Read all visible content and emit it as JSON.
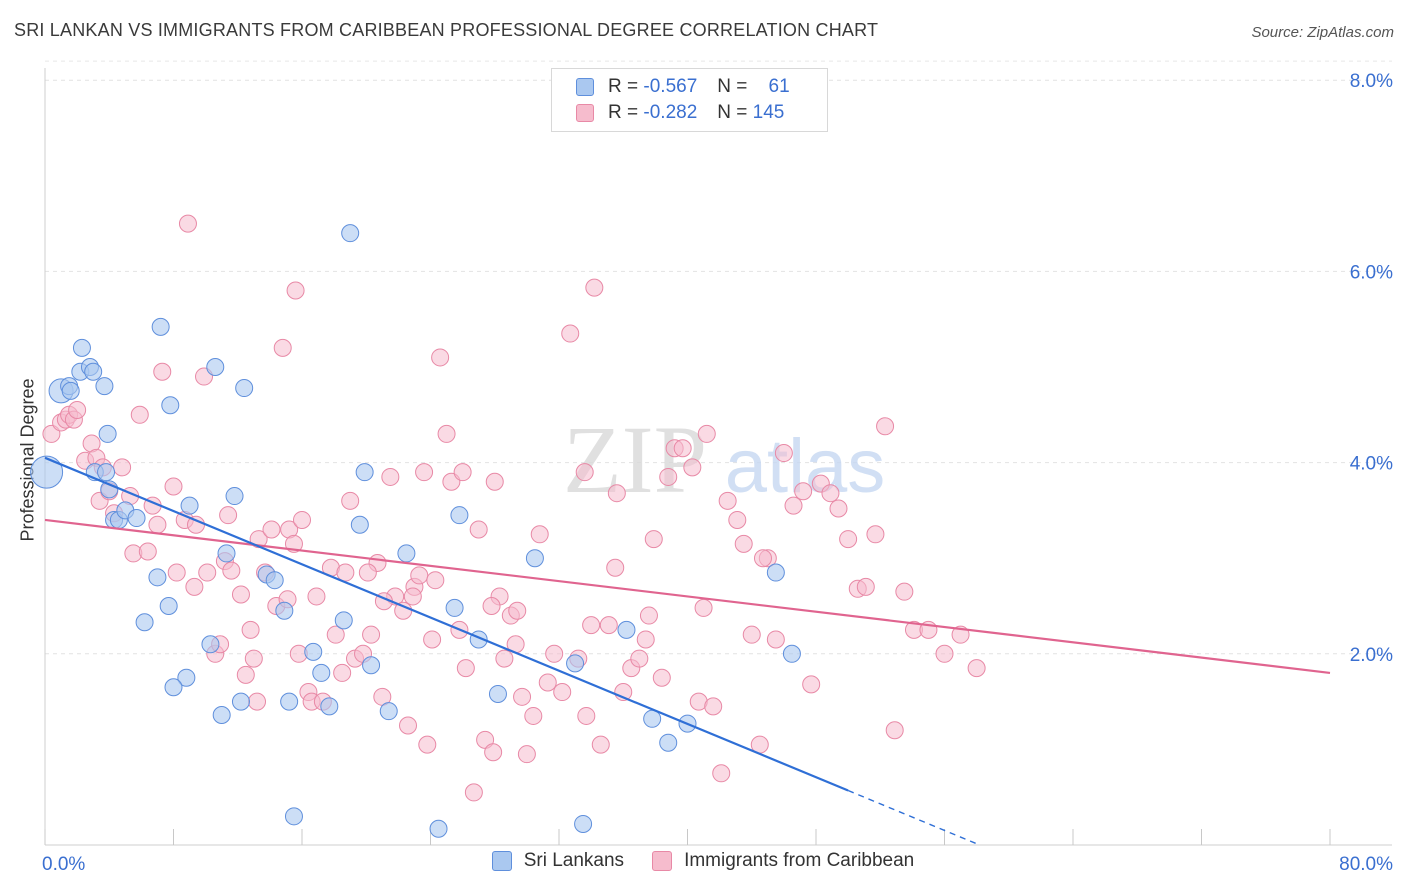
{
  "title": "SRI LANKAN VS IMMIGRANTS FROM CARIBBEAN PROFESSIONAL DEGREE CORRELATION CHART",
  "source": "Source: ZipAtlas.com",
  "watermark": {
    "zip": "ZIP",
    "atlas": "atlas"
  },
  "legend_top": [
    {
      "r_label": "R =",
      "r_value": "-0.567",
      "n_label": "N =",
      "n_value": "61"
    },
    {
      "r_label": "R =",
      "r_value": "-0.282",
      "n_label": "N =",
      "n_value": "145"
    }
  ],
  "chart_data": {
    "type": "scatter",
    "title": "SRI LANKAN VS IMMIGRANTS FROM CARIBBEAN PROFESSIONAL DEGREE CORRELATION CHART",
    "ylabel": "Professional Degree",
    "xlim": [
      0,
      80
    ],
    "ylim": [
      0,
      8.2
    ],
    "x_tick_labels": [
      "0.0%",
      "80.0%"
    ],
    "y_ticks": [
      2,
      4,
      6,
      8
    ],
    "y_tick_labels": [
      "2.0%",
      "4.0%",
      "6.0%",
      "8.0%"
    ],
    "grid": true,
    "legend_position": "bottom",
    "colors": {
      "sri_fill": "#aac8f0",
      "sri_stroke": "#5f8fdc",
      "sri_line": "#2f6fd6",
      "car_fill": "#f6bccd",
      "car_stroke": "#e889a6",
      "car_line": "#e0648f",
      "axis_label": "#3a6fd0"
    },
    "series": [
      {
        "name": "Sri Lankans",
        "trend": {
          "x1": 0,
          "y1": 4.05,
          "x2": 50,
          "y2": 0.57,
          "dash_to_x": 58
        },
        "points": [
          [
            1.0,
            4.75
          ],
          [
            1.5,
            4.8
          ],
          [
            1.6,
            4.75
          ],
          [
            2.2,
            4.95
          ],
          [
            2.3,
            5.2
          ],
          [
            2.8,
            5.0
          ],
          [
            3.0,
            4.95
          ],
          [
            3.7,
            4.8
          ],
          [
            3.9,
            4.3
          ],
          [
            3.1,
            3.9
          ],
          [
            3.8,
            3.9
          ],
          [
            4.0,
            3.72
          ],
          [
            4.3,
            3.4
          ],
          [
            4.6,
            3.4
          ],
          [
            5.0,
            3.5
          ],
          [
            5.7,
            3.42
          ],
          [
            7.2,
            5.42
          ],
          [
            7.8,
            4.6
          ],
          [
            9.0,
            3.55
          ],
          [
            10.6,
            5.0
          ],
          [
            11.3,
            3.05
          ],
          [
            11.8,
            3.65
          ],
          [
            12.4,
            4.78
          ],
          [
            13.8,
            2.83
          ],
          [
            14.3,
            2.77
          ],
          [
            14.9,
            2.45
          ],
          [
            15.2,
            1.5
          ],
          [
            16.7,
            2.02
          ],
          [
            17.2,
            1.8
          ],
          [
            17.7,
            1.45
          ],
          [
            18.6,
            2.35
          ],
          [
            19.6,
            3.35
          ],
          [
            19.9,
            3.9
          ],
          [
            20.3,
            1.88
          ],
          [
            21.4,
            1.4
          ],
          [
            7.0,
            2.8
          ],
          [
            7.7,
            2.5
          ],
          [
            6.2,
            2.33
          ],
          [
            8.8,
            1.75
          ],
          [
            10.3,
            2.1
          ],
          [
            11.0,
            1.36
          ],
          [
            12.2,
            1.5
          ],
          [
            8.0,
            1.65
          ],
          [
            19.0,
            6.4
          ],
          [
            22.5,
            3.05
          ],
          [
            25.5,
            2.48
          ],
          [
            25.8,
            3.45
          ],
          [
            27.0,
            2.15
          ],
          [
            28.2,
            1.58
          ],
          [
            30.5,
            3.0
          ],
          [
            33.0,
            1.9
          ],
          [
            36.2,
            2.25
          ],
          [
            37.8,
            1.32
          ],
          [
            38.8,
            1.07
          ],
          [
            40.0,
            1.27
          ],
          [
            45.5,
            2.85
          ],
          [
            46.5,
            2.0
          ],
          [
            15.5,
            0.3
          ],
          [
            24.5,
            0.17
          ],
          [
            33.5,
            0.22
          ],
          [
            0.1,
            3.9
          ]
        ]
      },
      {
        "name": "Immigrants from Caribbean",
        "trend": {
          "x1": 0,
          "y1": 3.4,
          "x2": 80,
          "y2": 1.8
        },
        "points": [
          [
            0.4,
            4.3
          ],
          [
            1.0,
            4.42
          ],
          [
            1.3,
            4.45
          ],
          [
            1.5,
            4.5
          ],
          [
            1.8,
            4.45
          ],
          [
            2.0,
            4.55
          ],
          [
            2.5,
            4.02
          ],
          [
            2.9,
            4.2
          ],
          [
            3.2,
            4.05
          ],
          [
            3.4,
            3.6
          ],
          [
            3.6,
            3.95
          ],
          [
            4.0,
            3.7
          ],
          [
            4.3,
            3.47
          ],
          [
            4.8,
            3.95
          ],
          [
            5.3,
            3.65
          ],
          [
            5.5,
            3.05
          ],
          [
            5.9,
            4.5
          ],
          [
            6.4,
            3.07
          ],
          [
            6.7,
            3.55
          ],
          [
            7.0,
            3.35
          ],
          [
            7.3,
            4.95
          ],
          [
            8.0,
            3.75
          ],
          [
            8.2,
            2.85
          ],
          [
            8.7,
            3.4
          ],
          [
            9.4,
            3.35
          ],
          [
            9.9,
            4.9
          ],
          [
            10.1,
            2.85
          ],
          [
            10.6,
            2.0
          ],
          [
            10.9,
            2.1
          ],
          [
            11.2,
            2.97
          ],
          [
            11.6,
            2.87
          ],
          [
            12.2,
            2.62
          ],
          [
            12.5,
            1.78
          ],
          [
            13.0,
            1.95
          ],
          [
            13.3,
            3.2
          ],
          [
            13.7,
            2.85
          ],
          [
            14.4,
            2.5
          ],
          [
            14.8,
            5.2
          ],
          [
            15.2,
            3.3
          ],
          [
            15.5,
            3.15
          ],
          [
            15.8,
            2.0
          ],
          [
            16.4,
            1.6
          ],
          [
            16.6,
            1.5
          ],
          [
            16.9,
            2.6
          ],
          [
            17.3,
            1.5
          ],
          [
            17.8,
            2.9
          ],
          [
            18.1,
            2.2
          ],
          [
            18.5,
            1.8
          ],
          [
            19.0,
            3.6
          ],
          [
            19.3,
            1.95
          ],
          [
            19.8,
            2.0
          ],
          [
            20.3,
            2.2
          ],
          [
            20.7,
            2.95
          ],
          [
            21.0,
            1.55
          ],
          [
            21.5,
            3.85
          ],
          [
            21.8,
            2.6
          ],
          [
            22.3,
            2.45
          ],
          [
            22.6,
            1.25
          ],
          [
            23.0,
            2.7
          ],
          [
            23.3,
            2.82
          ],
          [
            23.8,
            1.05
          ],
          [
            24.3,
            2.77
          ],
          [
            24.6,
            5.1
          ],
          [
            25.0,
            4.3
          ],
          [
            25.3,
            3.8
          ],
          [
            25.8,
            2.25
          ],
          [
            26.2,
            1.85
          ],
          [
            26.7,
            0.55
          ],
          [
            27.0,
            3.3
          ],
          [
            27.4,
            1.1
          ],
          [
            27.9,
            0.97
          ],
          [
            28.3,
            2.6
          ],
          [
            28.6,
            1.95
          ],
          [
            29.0,
            2.4
          ],
          [
            29.3,
            2.1
          ],
          [
            29.7,
            1.55
          ],
          [
            30.0,
            0.95
          ],
          [
            30.4,
            1.35
          ],
          [
            30.8,
            3.25
          ],
          [
            31.3,
            1.7
          ],
          [
            31.7,
            2.0
          ],
          [
            32.2,
            1.6
          ],
          [
            32.7,
            5.35
          ],
          [
            33.2,
            1.95
          ],
          [
            33.7,
            1.35
          ],
          [
            34.2,
            5.83
          ],
          [
            34.6,
            1.05
          ],
          [
            35.1,
            2.3
          ],
          [
            35.5,
            2.9
          ],
          [
            36.0,
            1.6
          ],
          [
            36.5,
            1.85
          ],
          [
            37.0,
            1.95
          ],
          [
            37.4,
            2.15
          ],
          [
            37.9,
            3.2
          ],
          [
            38.4,
            1.75
          ],
          [
            38.8,
            3.85
          ],
          [
            39.2,
            4.15
          ],
          [
            39.7,
            4.15
          ],
          [
            40.3,
            3.95
          ],
          [
            40.7,
            1.5
          ],
          [
            41.2,
            4.3
          ],
          [
            41.6,
            1.45
          ],
          [
            42.1,
            0.75
          ],
          [
            42.5,
            3.6
          ],
          [
            43.1,
            3.4
          ],
          [
            43.5,
            3.15
          ],
          [
            44.0,
            2.2
          ],
          [
            44.5,
            1.05
          ],
          [
            45.0,
            3.0
          ],
          [
            45.5,
            2.15
          ],
          [
            46.0,
            4.1
          ],
          [
            46.6,
            3.55
          ],
          [
            47.2,
            3.7
          ],
          [
            47.7,
            1.68
          ],
          [
            48.3,
            3.78
          ],
          [
            48.9,
            3.68
          ],
          [
            49.4,
            3.52
          ],
          [
            50.0,
            3.2
          ],
          [
            50.6,
            2.68
          ],
          [
            51.1,
            2.7
          ],
          [
            51.7,
            3.25
          ],
          [
            52.3,
            4.38
          ],
          [
            52.9,
            1.2
          ],
          [
            53.5,
            2.65
          ],
          [
            54.1,
            2.25
          ],
          [
            55.0,
            2.25
          ],
          [
            56.0,
            2.0
          ],
          [
            57.0,
            2.2
          ],
          [
            58.0,
            1.85
          ],
          [
            11.4,
            3.45
          ],
          [
            13.2,
            1.5
          ],
          [
            18.7,
            2.85
          ],
          [
            22.9,
            2.6
          ],
          [
            27.8,
            2.5
          ],
          [
            29.4,
            2.45
          ],
          [
            34.0,
            2.3
          ],
          [
            37.6,
            2.4
          ],
          [
            41.0,
            2.48
          ],
          [
            12.8,
            2.25
          ],
          [
            15.1,
            2.57
          ],
          [
            20.1,
            2.85
          ],
          [
            14.1,
            3.3
          ],
          [
            21.1,
            2.55
          ],
          [
            9.3,
            2.7
          ],
          [
            24.1,
            2.15
          ],
          [
            8.9,
            6.5
          ],
          [
            15.6,
            5.8
          ],
          [
            26.0,
            3.9
          ],
          [
            16.0,
            3.4
          ],
          [
            23.6,
            3.9
          ],
          [
            33.6,
            3.9
          ],
          [
            35.6,
            3.68
          ],
          [
            44.7,
            3.0
          ],
          [
            28.0,
            3.8
          ]
        ]
      }
    ]
  }
}
